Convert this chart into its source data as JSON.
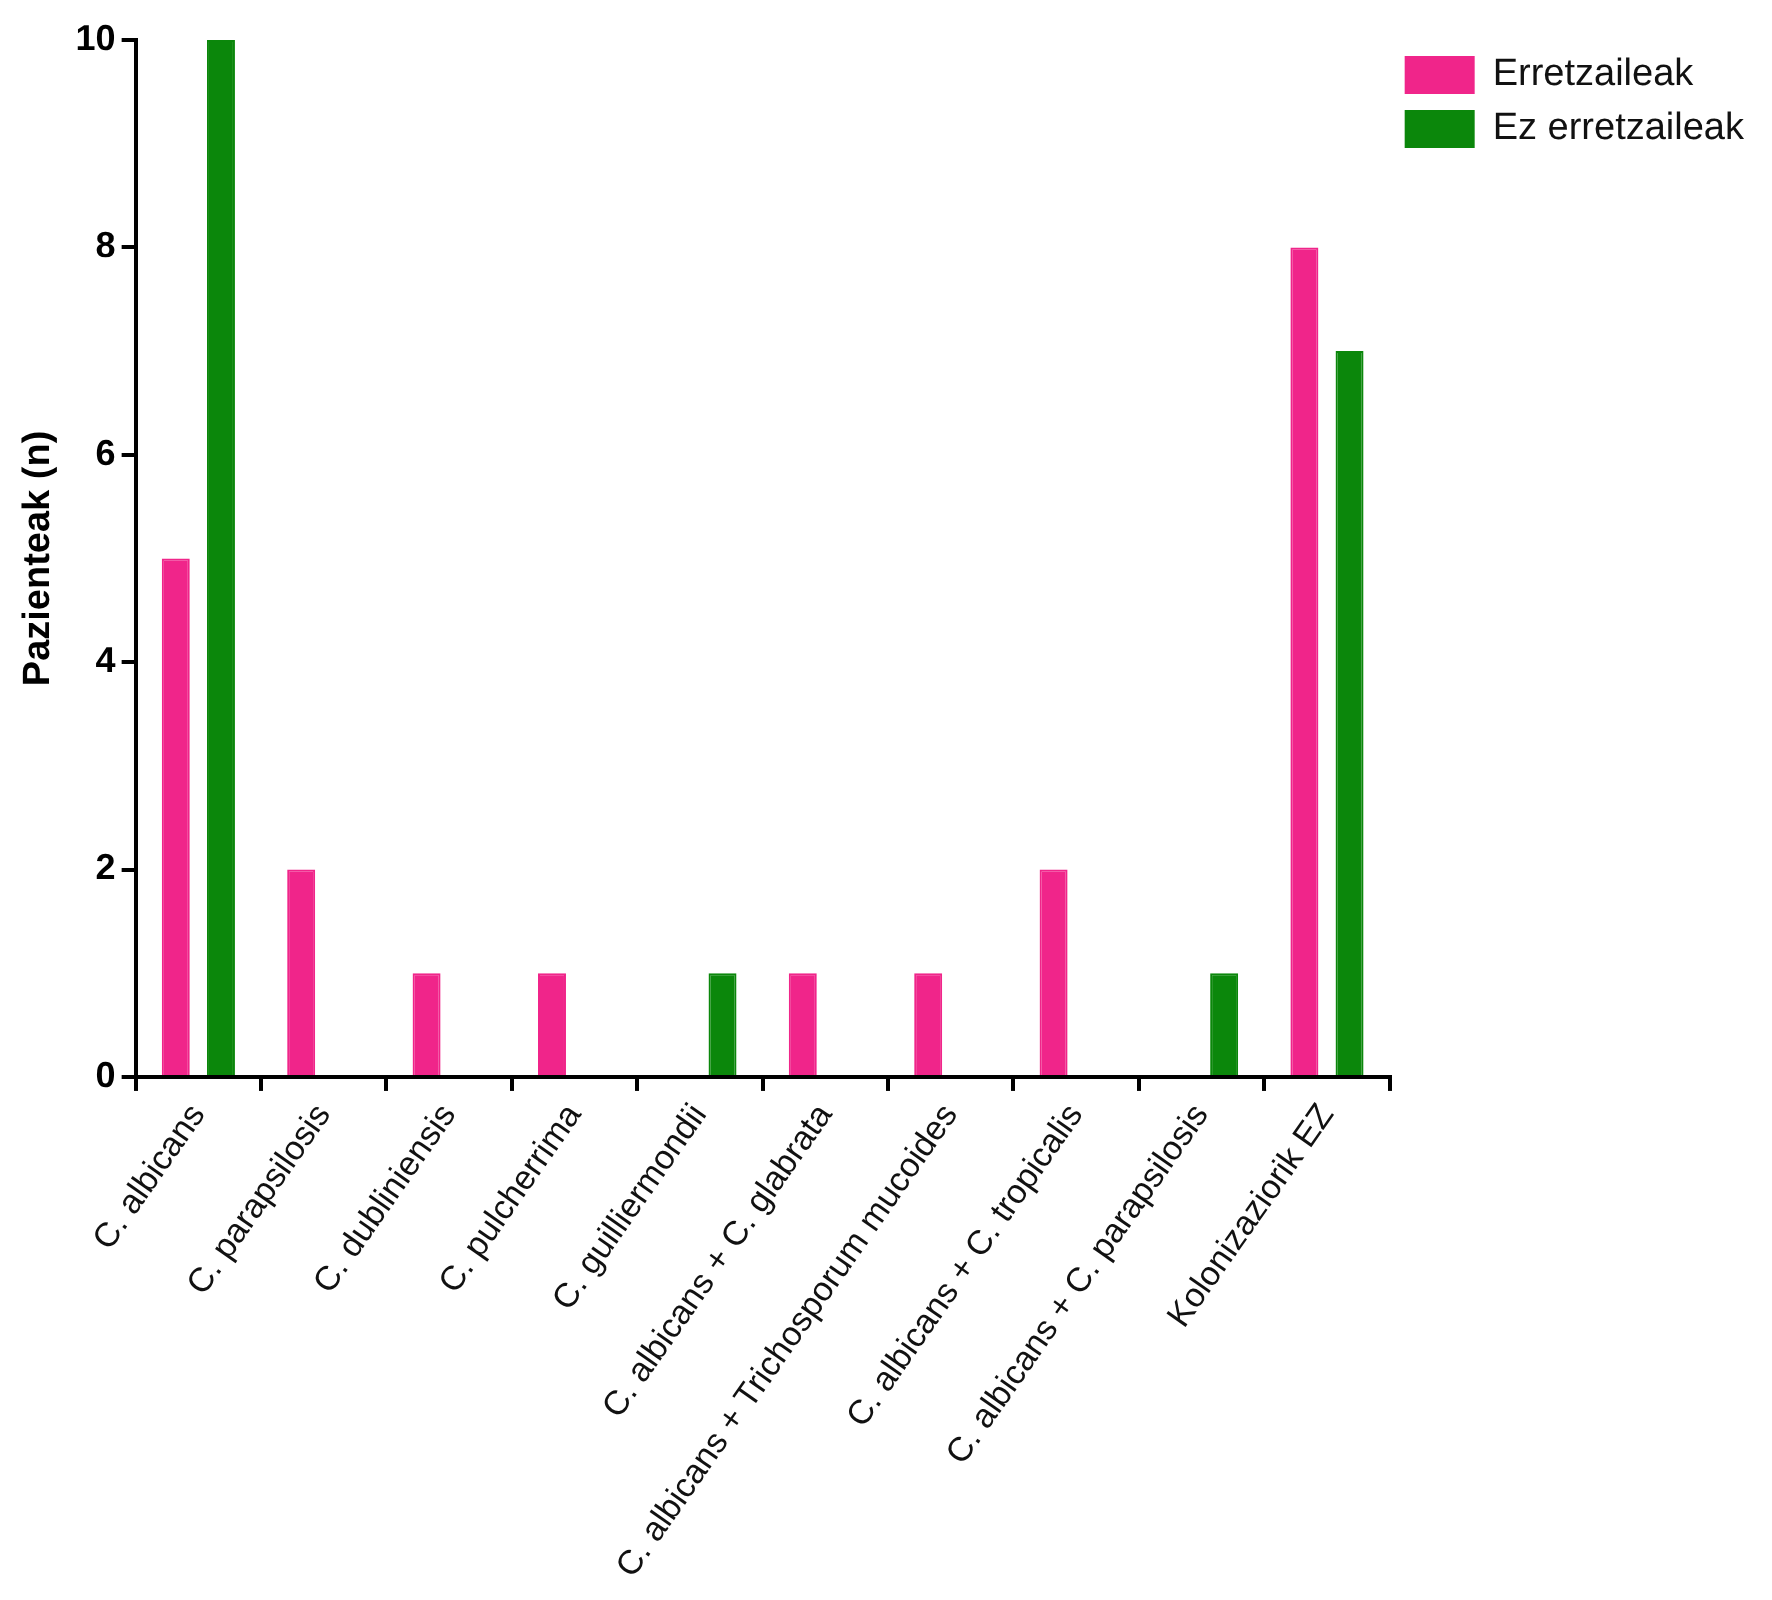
{
  "chart_data": {
    "type": "bar",
    "ylabel": "Pazienteak (n)",
    "categories": [
      "C. albicans",
      "C. parapsilosis",
      "C. dubliniensis",
      "C. pulcherrima",
      "C. guilliermondii",
      "C. albicans + C. glabrata",
      "C. albicans + Trichosporum mucoides",
      "C. albicans + C. tropicalis",
      "C. albicans + C. parapsilosis",
      "Kolonizaziorik EZ"
    ],
    "series": [
      {
        "name": "Erretzaileak",
        "color": "#f0258a",
        "values": [
          5,
          2,
          1,
          1,
          0,
          1,
          1,
          2,
          0,
          8
        ]
      },
      {
        "name": "Ez erretzaileak",
        "color": "#0b870b",
        "values": [
          10,
          0,
          0,
          0,
          1,
          0,
          0,
          0,
          1,
          7
        ]
      }
    ],
    "ylim": [
      0,
      10
    ],
    "yticks": [
      0,
      2,
      4,
      6,
      8,
      10
    ],
    "grid": false,
    "legend": "top right"
  }
}
